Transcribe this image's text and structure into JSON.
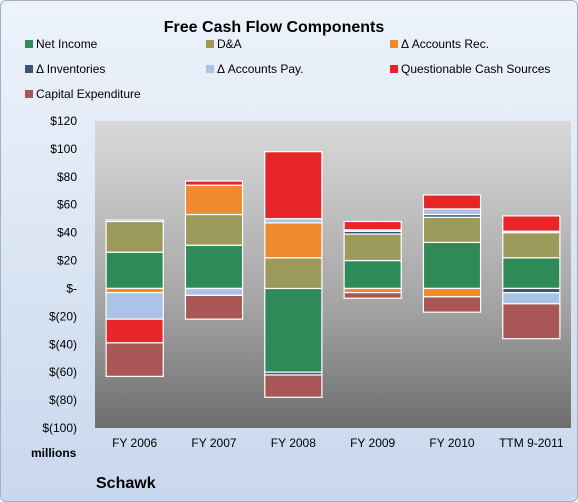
{
  "chart_data": {
    "type": "bar",
    "stacked": true,
    "title": "Free Cash Flow Components",
    "units_label": "millions",
    "company": "Schawk",
    "categories": [
      "FY 2006",
      "FY 2007",
      "FY 2008",
      "FY 2009",
      "FY 2010",
      "TTM 9-2011"
    ],
    "y_ticks": [
      "$120",
      "$100",
      "$80",
      "$60",
      "$40",
      "$20",
      "$-",
      "$(20)",
      "$(40)",
      "$(60)",
      "$(80)",
      "$(100)"
    ],
    "ylim": [
      -100,
      120
    ],
    "grid": false,
    "legend_position": "top",
    "series": [
      {
        "name": "Net Income",
        "color": "#2e8b57",
        "values": [
          26,
          31,
          -60,
          20,
          33,
          22
        ]
      },
      {
        "name": "D&A",
        "color": "#9c9a5a",
        "values": [
          22,
          22,
          22,
          19,
          18,
          18
        ]
      },
      {
        "name": "Δ Accounts Rec.",
        "color": "#ef8a2e",
        "values": [
          -3,
          21,
          25,
          -3,
          -6,
          1
        ]
      },
      {
        "name": "Δ Inventories",
        "color": "#3a5577",
        "values": [
          1,
          0,
          -2,
          2,
          2,
          -3
        ]
      },
      {
        "name": "Δ Accounts Pay.",
        "color": "#a9c4e6",
        "values": [
          -19,
          -5,
          3,
          1,
          4,
          -8
        ]
      },
      {
        "name": "Questionable Cash Sources",
        "color": "#e8262a",
        "values": [
          -17,
          3,
          48,
          6,
          10,
          11
        ]
      },
      {
        "name": "Capital Expenditure",
        "color": "#a85656",
        "values": [
          -24,
          -17,
          -16,
          -4,
          -11,
          -25
        ]
      }
    ]
  }
}
